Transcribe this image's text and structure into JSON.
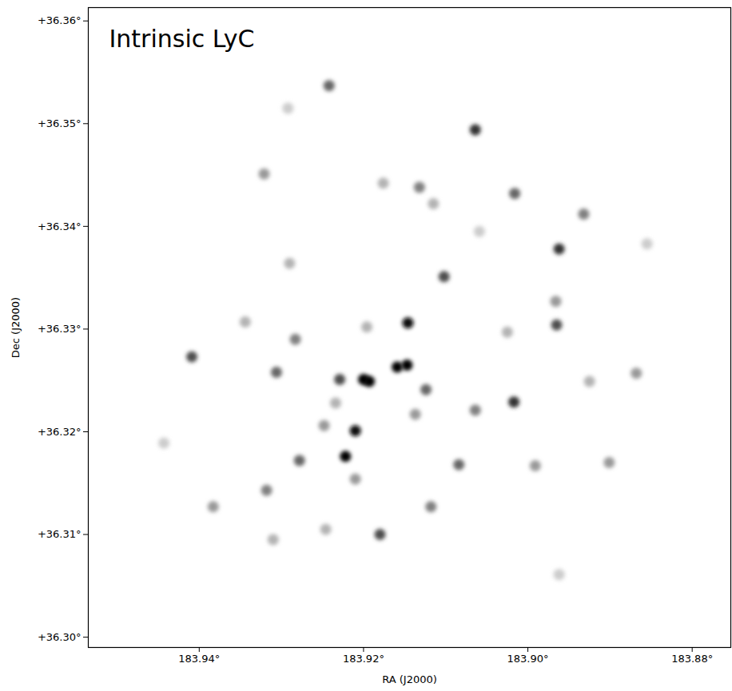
{
  "chart_data": {
    "type": "scatter",
    "title": "Intrinsic LyC",
    "x_label": "RA (J2000)",
    "y_label": "Dec (J2000)",
    "color": "#000000",
    "x": [
      183.9242,
      183.9064,
      183.9321,
      183.9132,
      183.9016,
      183.8932,
      183.8962,
      183.9102,
      183.9146,
      183.8965,
      183.8966,
      183.9283,
      183.9409,
      183.9306,
      183.92,
      183.9229,
      183.9159,
      183.9147,
      183.9193,
      183.9124,
      183.9017,
      183.9064,
      183.921,
      183.9222,
      183.9278,
      183.9248,
      183.9084,
      183.8991,
      183.8901,
      183.8868,
      183.9118,
      183.9318,
      183.9383,
      183.918,
      183.9246,
      183.931,
      183.8962,
      183.8855,
      183.929,
      183.9196,
      183.9344,
      183.9025,
      183.8925,
      183.9443,
      183.9059,
      183.9176,
      183.9115,
      183.9292,
      183.921,
      183.9234,
      183.9137
    ],
    "y": [
      36.3537,
      36.3494,
      36.3451,
      36.3438,
      36.3432,
      36.3412,
      36.3378,
      36.3351,
      36.3306,
      36.3304,
      36.3327,
      36.329,
      36.3273,
      36.3258,
      36.3251,
      36.3251,
      36.3263,
      36.3265,
      36.3249,
      36.3241,
      36.3229,
      36.3221,
      36.3201,
      36.3176,
      36.3172,
      36.3206,
      36.3168,
      36.3167,
      36.317,
      36.3257,
      36.3127,
      36.3143,
      36.3127,
      36.31,
      36.3105,
      36.3095,
      36.3061,
      36.3383,
      36.3364,
      36.3302,
      36.3307,
      36.3297,
      36.3249,
      36.3189,
      36.3395,
      36.3442,
      36.3422,
      36.3515,
      36.3154,
      36.3228,
      36.3217
    ],
    "intensity": [
      0.6,
      0.8,
      0.4,
      0.5,
      0.6,
      0.5,
      0.8,
      0.7,
      0.95,
      0.7,
      0.4,
      0.5,
      0.7,
      0.6,
      1.0,
      0.7,
      1.0,
      1.0,
      1.0,
      0.6,
      0.8,
      0.5,
      0.95,
      1.0,
      0.6,
      0.4,
      0.6,
      0.4,
      0.4,
      0.4,
      0.5,
      0.5,
      0.4,
      0.7,
      0.3,
      0.3,
      0.2,
      0.2,
      0.3,
      0.3,
      0.3,
      0.3,
      0.3,
      0.2,
      0.2,
      0.3,
      0.3,
      0.2,
      0.4,
      0.3,
      0.4
    ],
    "zlim": [
      0,
      1
    ],
    "xlim": [
      183.9535,
      183.8753
    ],
    "ylim": [
      36.299,
      36.3613
    ],
    "xticks": [
      {
        "value": 183.94,
        "label": "183.94°"
      },
      {
        "value": 183.92,
        "label": "183.92°"
      },
      {
        "value": 183.9,
        "label": "183.90°"
      },
      {
        "value": 183.88,
        "label": "183.88°"
      }
    ],
    "yticks": [
      {
        "value": 36.3,
        "label": "+36.30°"
      },
      {
        "value": 36.31,
        "label": "+36.31°"
      },
      {
        "value": 36.32,
        "label": "+36.32°"
      },
      {
        "value": 36.33,
        "label": "+36.33°"
      },
      {
        "value": 36.34,
        "label": "+36.34°"
      },
      {
        "value": 36.35,
        "label": "+36.35°"
      },
      {
        "value": 36.36,
        "label": "+36.36°"
      }
    ],
    "grid": false
  }
}
